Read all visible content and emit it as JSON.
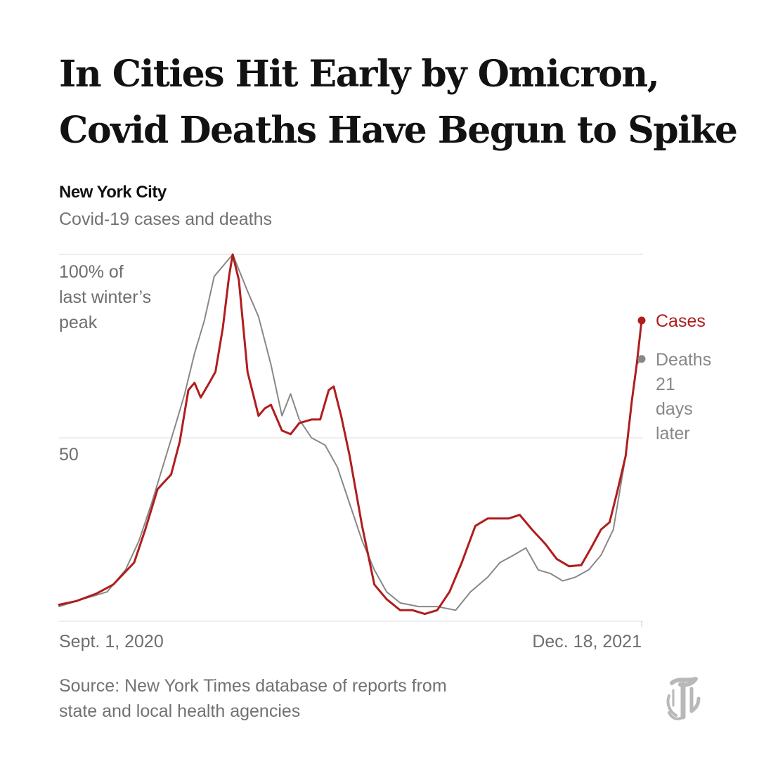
{
  "headline": {
    "line1": "In Cities Hit Early by Omicron,",
    "line2": "Covid Deaths Have Begun to Spike"
  },
  "chart_data": {
    "type": "line",
    "title": "New York City",
    "subtitle": "Covid-19 cases and deaths",
    "x_start_label": "Sept. 1, 2020",
    "x_end_label": "Dec. 18, 2021",
    "y_unit_label": [
      "100% of",
      "last winter’s",
      "peak"
    ],
    "y_ticks": [
      {
        "value": 50,
        "label": "50"
      },
      {
        "value": 100,
        "label": ""
      }
    ],
    "ylim": [
      0,
      100
    ],
    "grid": true,
    "legend_placement": "right, beside line ends",
    "series": [
      {
        "name": "Cases",
        "color": "#b01d1d",
        "label_lines": [
          "Cases"
        ],
        "x": [
          "2020-09-01",
          "2020-09-15",
          "2020-10-01",
          "2020-10-15",
          "2020-11-01",
          "2020-11-10",
          "2020-11-20",
          "2020-12-01",
          "2020-12-08",
          "2020-12-15",
          "2020-12-20",
          "2020-12-25",
          "2021-01-01",
          "2021-01-06",
          "2021-01-12",
          "2021-01-17",
          "2021-01-20",
          "2021-01-25",
          "2021-02-01",
          "2021-02-10",
          "2021-02-15",
          "2021-02-20",
          "2021-03-01",
          "2021-03-08",
          "2021-03-15",
          "2021-03-25",
          "2021-04-01",
          "2021-04-08",
          "2021-04-12",
          "2021-04-18",
          "2021-04-25",
          "2021-05-05",
          "2021-05-15",
          "2021-05-25",
          "2021-06-05",
          "2021-06-15",
          "2021-06-25",
          "2021-07-05",
          "2021-07-15",
          "2021-07-25",
          "2021-08-05",
          "2021-08-15",
          "2021-08-25",
          "2021-09-01",
          "2021-09-10",
          "2021-09-20",
          "2021-10-01",
          "2021-10-10",
          "2021-10-20",
          "2021-10-30",
          "2021-11-07",
          "2021-11-15",
          "2021-11-22",
          "2021-11-28",
          "2021-12-05",
          "2021-12-10",
          "2021-12-14",
          "2021-12-18"
        ],
        "values": [
          4.5,
          5.5,
          7.5,
          10,
          16,
          25,
          36,
          40,
          49,
          63,
          65,
          61,
          65,
          68,
          80,
          94,
          100,
          93,
          68,
          56,
          58,
          59,
          52,
          51,
          54,
          55,
          55,
          63,
          64,
          56,
          45,
          26,
          10,
          6,
          3,
          3,
          2,
          3,
          8,
          16,
          26,
          28,
          28,
          28,
          29,
          25,
          21,
          17,
          15,
          15.3,
          20,
          25,
          27,
          35,
          45,
          60,
          70,
          82
        ]
      },
      {
        "name": "Deaths",
        "color": "#888888",
        "label_lines": [
          "Deaths",
          "21",
          "days",
          "later"
        ],
        "x": [
          "2020-09-01",
          "2020-09-20",
          "2020-10-10",
          "2020-10-25",
          "2020-11-05",
          "2020-11-15",
          "2020-11-25",
          "2020-12-05",
          "2020-12-12",
          "2020-12-20",
          "2020-12-28",
          "2021-01-05",
          "2021-01-15",
          "2021-01-20",
          "2021-02-01",
          "2021-02-10",
          "2021-02-20",
          "2021-03-01",
          "2021-03-08",
          "2021-03-15",
          "2021-03-25",
          "2021-04-05",
          "2021-04-15",
          "2021-04-25",
          "2021-05-05",
          "2021-05-15",
          "2021-05-25",
          "2021-06-05",
          "2021-06-20",
          "2021-07-05",
          "2021-07-20",
          "2021-08-01",
          "2021-08-15",
          "2021-08-25",
          "2021-09-05",
          "2021-09-15",
          "2021-09-25",
          "2021-10-05",
          "2021-10-15",
          "2021-10-25",
          "2021-11-05",
          "2021-11-15",
          "2021-11-25",
          "2021-12-05",
          "2021-12-10",
          "2021-12-14",
          "2021-12-18"
        ],
        "values": [
          4,
          6,
          8,
          14,
          22,
          32,
          43,
          54,
          62,
          73,
          82,
          94,
          98,
          100,
          90,
          83,
          70,
          56,
          62,
          55,
          50,
          48,
          42,
          32,
          22,
          14,
          8,
          5,
          4,
          4,
          3,
          8,
          12,
          16,
          18,
          20,
          14,
          13,
          11,
          12,
          14,
          18,
          25,
          45,
          60,
          70,
          71.5
        ]
      }
    ]
  },
  "source": {
    "line1": "Source: New York Times database of reports from",
    "line2": "state and local health agencies"
  },
  "logo": {
    "icon": "nyt-t-logo-icon",
    "color": "#b8b8b8"
  }
}
